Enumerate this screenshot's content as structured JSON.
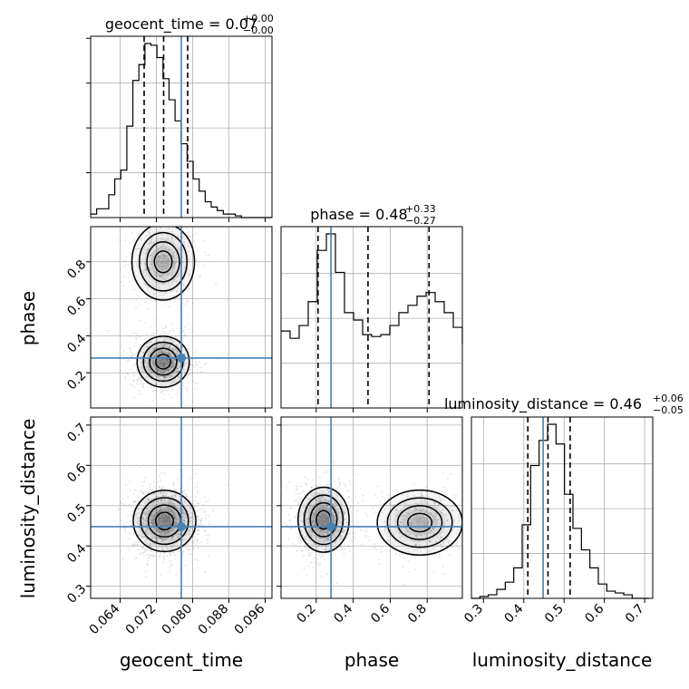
{
  "chart_data": {
    "type": "corner",
    "parameters": [
      "geocent_time",
      "phase",
      "luminosity_distance"
    ],
    "truths": {
      "geocent_time": 0.0775,
      "phase": 0.28,
      "luminosity_distance": 0.448
    },
    "truth_color": "#4682b4",
    "axes": {
      "geocent_time": {
        "range": [
          0.0575,
          0.0975
        ],
        "ticks": [
          0.064,
          0.072,
          0.08,
          0.088,
          0.096
        ],
        "tick_labels": [
          "0.064",
          "0.072",
          "0.080",
          "0.088",
          "0.096"
        ],
        "xlabel": "geocent_time"
      },
      "phase": {
        "range": [
          0.01,
          0.99
        ],
        "ticks": [
          0.2,
          0.4,
          0.6,
          0.8
        ],
        "tick_labels": [
          "0.2",
          "0.4",
          "0.6",
          "0.8"
        ],
        "xlabel": "phase",
        "ylabel": "phase"
      },
      "luminosity_distance": {
        "range": [
          0.27,
          0.72
        ],
        "ticks": [
          0.3,
          0.4,
          0.5,
          0.6,
          0.7
        ],
        "tick_labels": [
          "0.3",
          "0.4",
          "0.5",
          "0.6",
          "0.7"
        ],
        "xlabel": "luminosity_distance",
        "ylabel": "luminosity_distance"
      }
    },
    "titles": {
      "geocent_time": {
        "name": "geocent_time",
        "median": "0.07",
        "plus": "+0.00",
        "minus": "−0.00"
      },
      "phase": {
        "name": "phase",
        "median": "0.48",
        "plus": "+0.33",
        "minus": "−0.27"
      },
      "luminosity_distance": {
        "name": "luminosity_distance",
        "median": "0.46",
        "plus": "+0.06",
        "minus": "−0.05"
      }
    },
    "histograms": {
      "geocent_time": {
        "edges_start": 0.0575,
        "bin_width": 0.00133,
        "counts": [
          0.02,
          0.05,
          0.05,
          0.13,
          0.22,
          0.27,
          0.52,
          0.78,
          0.87,
          0.99,
          0.98,
          0.91,
          0.79,
          0.67,
          0.55,
          0.42,
          0.32,
          0.22,
          0.15,
          0.09,
          0.06,
          0.04,
          0.02,
          0.02,
          0.01,
          0.0,
          0.0,
          0.0,
          0.0,
          0.0
        ],
        "quantiles": [
          0.0693,
          0.0736,
          0.0789
        ]
      },
      "phase": {
        "edges_start": 0.01,
        "bin_width": 0.049,
        "counts": [
          0.42,
          0.38,
          0.45,
          0.58,
          0.86,
          0.95,
          0.74,
          0.52,
          0.48,
          0.4,
          0.39,
          0.4,
          0.45,
          0.52,
          0.56,
          0.61,
          0.63,
          0.58,
          0.52,
          0.44,
          0.35
        ],
        "quantiles": [
          0.21,
          0.48,
          0.81
        ]
      },
      "luminosity_distance": {
        "edges_start": 0.27,
        "bin_width": 0.021,
        "counts": [
          0.0,
          0.01,
          0.02,
          0.05,
          0.09,
          0.17,
          0.41,
          0.74,
          0.88,
          0.97,
          0.86,
          0.58,
          0.39,
          0.27,
          0.17,
          0.08,
          0.04,
          0.03,
          0.02,
          0.0,
          0.0
        ],
        "quantiles": [
          0.41,
          0.46,
          0.515
        ]
      }
    },
    "joint_modes": {
      "phase_vs_geocent_time": [
        {
          "x": 0.0735,
          "y": 0.26,
          "sx": 0.0025,
          "sy": 0.06,
          "w": 1.0
        },
        {
          "x": 0.0735,
          "y": 0.8,
          "sx": 0.003,
          "sy": 0.09,
          "w": 0.55
        }
      ],
      "luminosity_distance_vs_geocent_time": [
        {
          "x": 0.0738,
          "y": 0.462,
          "sx": 0.003,
          "sy": 0.033,
          "w": 1.0
        }
      ],
      "luminosity_distance_vs_phase": [
        {
          "x": 0.24,
          "y": 0.465,
          "sx": 0.06,
          "sy": 0.035,
          "w": 1.0
        },
        {
          "x": 0.76,
          "y": 0.458,
          "sx": 0.1,
          "sy": 0.035,
          "w": 0.55
        }
      ]
    }
  }
}
